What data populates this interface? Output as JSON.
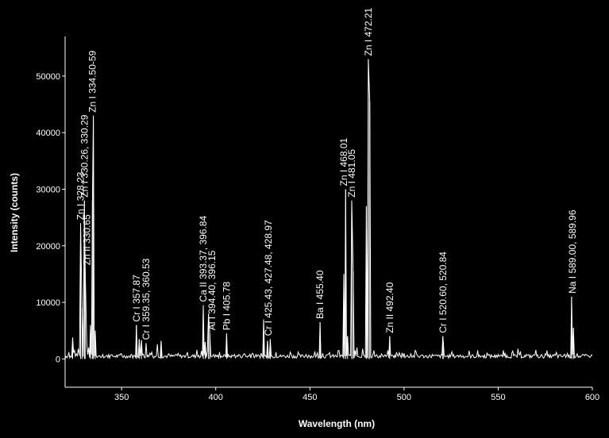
{
  "chart_data": {
    "type": "line",
    "title": "",
    "xlabel": "Wavelength (nm)",
    "ylabel": "Intensity (counts)",
    "xlim": [
      320,
      600
    ],
    "ylim": [
      -5000,
      57000
    ],
    "x_ticks": [
      350,
      400,
      450,
      500,
      550,
      600
    ],
    "y_ticks": [
      0,
      10000,
      20000,
      30000,
      40000,
      50000
    ],
    "grid": false,
    "background_color": "#000000",
    "line_color": "#ffffff",
    "series": [
      {
        "values": [
          [
            320,
            0
          ],
          [
            322,
            1200
          ],
          [
            324,
            3800
          ],
          [
            325,
            1500
          ],
          [
            326,
            900
          ],
          [
            327,
            1800
          ],
          [
            328.23,
            24000
          ],
          [
            329,
            9000
          ],
          [
            330.26,
            28000
          ],
          [
            330.65,
            16000
          ],
          [
            331.5,
            2500
          ],
          [
            332.5,
            2000
          ],
          [
            333.5,
            6000
          ],
          [
            334.5,
            28000
          ],
          [
            335,
            43000
          ],
          [
            336,
            5000
          ],
          [
            338,
            600
          ],
          [
            340,
            800
          ],
          [
            345,
            700
          ],
          [
            350,
            900
          ],
          [
            355,
            800
          ],
          [
            357.87,
            6000
          ],
          [
            359.35,
            3500
          ],
          [
            360.53,
            3300
          ],
          [
            363,
            2800
          ],
          [
            366,
            1200
          ],
          [
            369,
            2600
          ],
          [
            371,
            3200
          ],
          [
            375,
            900
          ],
          [
            380,
            1000
          ],
          [
            385,
            1200
          ],
          [
            390,
            1600
          ],
          [
            393.37,
            9500
          ],
          [
            394.4,
            3000
          ],
          [
            396.15,
            8000
          ],
          [
            396.84,
            4500
          ],
          [
            399,
            800
          ],
          [
            402,
            1200
          ],
          [
            405.78,
            4500
          ],
          [
            410,
            800
          ],
          [
            415,
            900
          ],
          [
            420,
            800
          ],
          [
            425.43,
            7000
          ],
          [
            427.48,
            3200
          ],
          [
            428.97,
            3500
          ],
          [
            432,
            1200
          ],
          [
            440,
            900
          ],
          [
            448,
            800
          ],
          [
            455.4,
            6500
          ],
          [
            460,
            900
          ],
          [
            465,
            1500
          ],
          [
            468.01,
            15000
          ],
          [
            469,
            30000
          ],
          [
            470,
            4000
          ],
          [
            472.21,
            28000
          ],
          [
            473,
            15500
          ],
          [
            475,
            2000
          ],
          [
            478,
            1800
          ],
          [
            480,
            27000
          ],
          [
            481.05,
            53000
          ],
          [
            481.8,
            45500
          ],
          [
            484,
            1500
          ],
          [
            488,
            900
          ],
          [
            492.4,
            4000
          ],
          [
            496,
            1200
          ],
          [
            500,
            1000
          ],
          [
            510,
            700
          ],
          [
            515,
            800
          ],
          [
            520.6,
            4000
          ],
          [
            520.84,
            3000
          ],
          [
            525,
            800
          ],
          [
            530,
            700
          ],
          [
            540,
            700
          ],
          [
            550,
            800
          ],
          [
            560.5,
            1800
          ],
          [
            565,
            800
          ],
          [
            570,
            1600
          ],
          [
            575,
            900
          ],
          [
            580,
            800
          ],
          [
            589,
            11000
          ],
          [
            589.96,
            5500
          ],
          [
            592,
            900
          ],
          [
            595,
            800
          ],
          [
            600,
            600
          ]
        ]
      }
    ],
    "annotations": [
      {
        "text": "Zn I 328.23",
        "x": 328.23
      },
      {
        "text": "Zn I 330.26, 330.29",
        "x": 330.29
      },
      {
        "text": "Zn II 330.65",
        "x": 331.7
      },
      {
        "text": "Zn I 334.50-59",
        "x": 334.55
      },
      {
        "text": "Cr I 357.87",
        "x": 357.87
      },
      {
        "text": "Cr I 359.35, 360.53",
        "x": 363
      },
      {
        "text": "Ca II 393.37, 396.84",
        "x": 393.37
      },
      {
        "text": "Al I 394.40, 396.15",
        "x": 398
      },
      {
        "text": "Pb I 405.78",
        "x": 405.78
      },
      {
        "text": "Cr I 425.43, 427.48, 428.97",
        "x": 428
      },
      {
        "text": "Ba I 455.40",
        "x": 455.4
      },
      {
        "text": "Zn I 468.01",
        "x": 468.01
      },
      {
        "text": "Zn I 481.05",
        "x": 472.21
      },
      {
        "text": "Zn I 472.21",
        "x": 481.05
      },
      {
        "text": "Zn II 492.40",
        "x": 492.4
      },
      {
        "text": "Cr I 520.60, 520.84",
        "x": 520.7
      },
      {
        "text": "Na I 589.00, 589.96",
        "x": 589.5
      }
    ]
  }
}
